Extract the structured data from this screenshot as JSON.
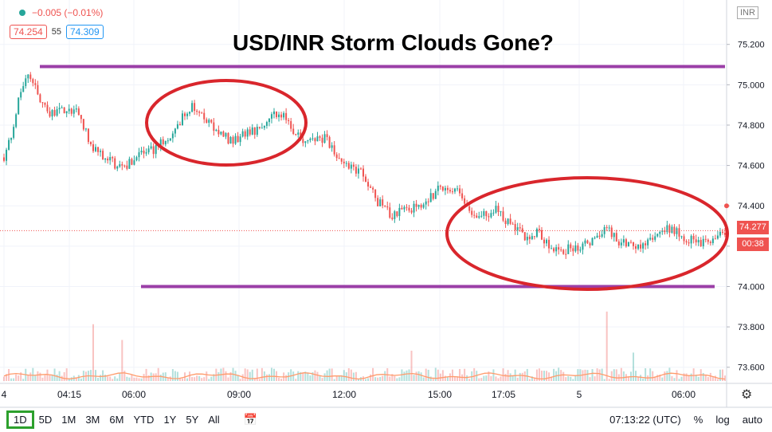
{
  "title": "USD/INR Storm Clouds Gone?",
  "header": {
    "change": "−0.005 (−0.01%)",
    "bid": "74.254",
    "spread": "55",
    "ask": "74.309",
    "currency_box": "INR"
  },
  "price_label": {
    "price": "74.277",
    "countdown": "00:38"
  },
  "bottom_bar": {
    "timeframes": [
      "1D",
      "5D",
      "1M",
      "3M",
      "6M",
      "YTD",
      "1Y",
      "5Y",
      "All"
    ],
    "active_timeframe": "1D",
    "clock": "07:13:22 (UTC)",
    "percent_label": "%",
    "log_label": "log",
    "auto_label": "auto"
  },
  "colors": {
    "up": "#26a69a",
    "down": "#ef5350",
    "annotation_line": "#9b3fa7",
    "annotation_ellipse": "#d9262c",
    "active_timeframe_border": "#2ca02c"
  },
  "chart_data": {
    "type": "candlestick",
    "ylim": [
      73.52,
      75.42
    ],
    "y_ticks": [
      "75.200",
      "75.000",
      "74.800",
      "74.600",
      "74.400",
      "74.200",
      "74.000",
      "73.800",
      "73.600"
    ],
    "x_ticks": [
      "4",
      "04:15",
      "06:00",
      "09:00",
      "12:00",
      "15:00",
      "17:05",
      "5",
      "06:00"
    ],
    "price_path": [
      [
        0,
        74.64
      ],
      [
        0.6,
        74.75
      ],
      [
        1.2,
        74.97
      ],
      [
        1.8,
        75.06
      ],
      [
        2.4,
        74.98
      ],
      [
        3.3,
        74.85
      ],
      [
        4.5,
        74.88
      ],
      [
        5.5,
        74.87
      ],
      [
        6.5,
        74.7
      ],
      [
        8,
        74.62
      ],
      [
        9,
        74.58
      ],
      [
        10,
        74.66
      ],
      [
        11,
        74.67
      ],
      [
        12,
        74.72
      ],
      [
        13,
        74.8
      ],
      [
        14,
        74.9
      ],
      [
        15,
        74.83
      ],
      [
        16,
        74.76
      ],
      [
        17,
        74.72
      ],
      [
        18,
        74.75
      ],
      [
        19,
        74.78
      ],
      [
        20,
        74.86
      ],
      [
        21,
        74.84
      ],
      [
        22,
        74.75
      ],
      [
        23,
        74.71
      ],
      [
        24,
        74.74
      ],
      [
        25,
        74.63
      ],
      [
        26,
        74.6
      ],
      [
        27,
        74.55
      ],
      [
        28,
        74.42
      ],
      [
        29,
        74.35
      ],
      [
        30,
        74.4
      ],
      [
        31,
        74.38
      ],
      [
        32,
        74.45
      ],
      [
        33,
        74.5
      ],
      [
        34,
        74.47
      ],
      [
        35,
        74.35
      ],
      [
        36,
        74.35
      ],
      [
        37,
        74.38
      ],
      [
        38,
        74.3
      ],
      [
        39,
        74.25
      ],
      [
        40,
        74.27
      ],
      [
        41,
        74.18
      ],
      [
        42,
        74.18
      ],
      [
        43,
        74.2
      ],
      [
        44,
        74.22
      ],
      [
        45,
        74.3
      ],
      [
        46,
        74.22
      ],
      [
        47,
        74.2
      ],
      [
        48,
        74.2
      ],
      [
        49,
        74.28
      ],
      [
        50,
        74.28
      ],
      [
        51,
        74.24
      ],
      [
        52,
        74.22
      ],
      [
        53,
        74.22
      ],
      [
        54,
        74.28
      ]
    ],
    "volume_ylim": [
      0,
      120
    ],
    "volume_spikes": [
      [
        6.6,
        90
      ],
      [
        8.8,
        65
      ],
      [
        30.5,
        48
      ],
      [
        45.2,
        110
      ],
      [
        47.2,
        45
      ]
    ],
    "annotations": {
      "resistance_line": 75.09,
      "support_line": 74.0,
      "last_price": 74.277
    }
  }
}
